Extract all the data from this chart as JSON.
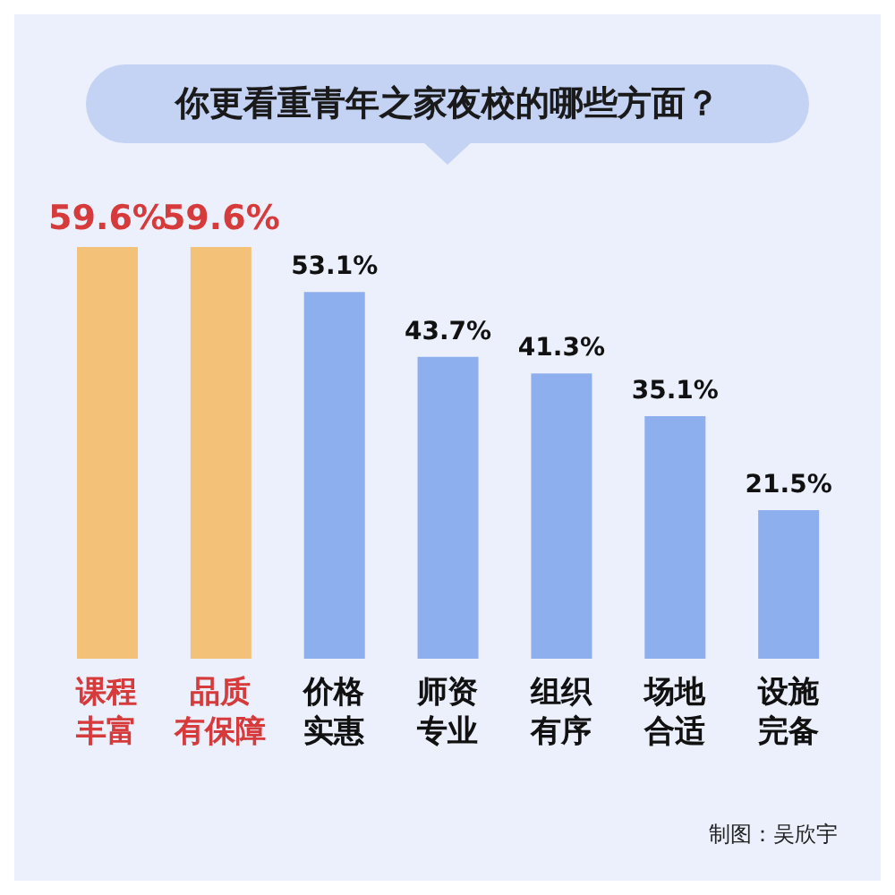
{
  "chart_data": {
    "type": "bar",
    "title": "你更看重青年之家夜校的哪些方面？",
    "categories": [
      "课程丰富",
      "品质有保障",
      "价格实惠",
      "师资专业",
      "组织有序",
      "场地合适",
      "设施完备"
    ],
    "values": [
      59.6,
      59.6,
      53.1,
      43.7,
      41.3,
      35.1,
      21.5
    ],
    "colors": [
      "#f5b860",
      "#f5b860",
      "#7ea3ea",
      "#7ea3ea",
      "#7ea3ea",
      "#7ea3ea",
      "#7ea3ea"
    ],
    "value_labels": [
      "59.6%",
      "59.6%",
      "53.1%",
      "43.7%",
      "41.3%",
      "35.1%",
      "21.5%"
    ],
    "annotations": [
      "制图：吴欣宇"
    ]
  }
}
